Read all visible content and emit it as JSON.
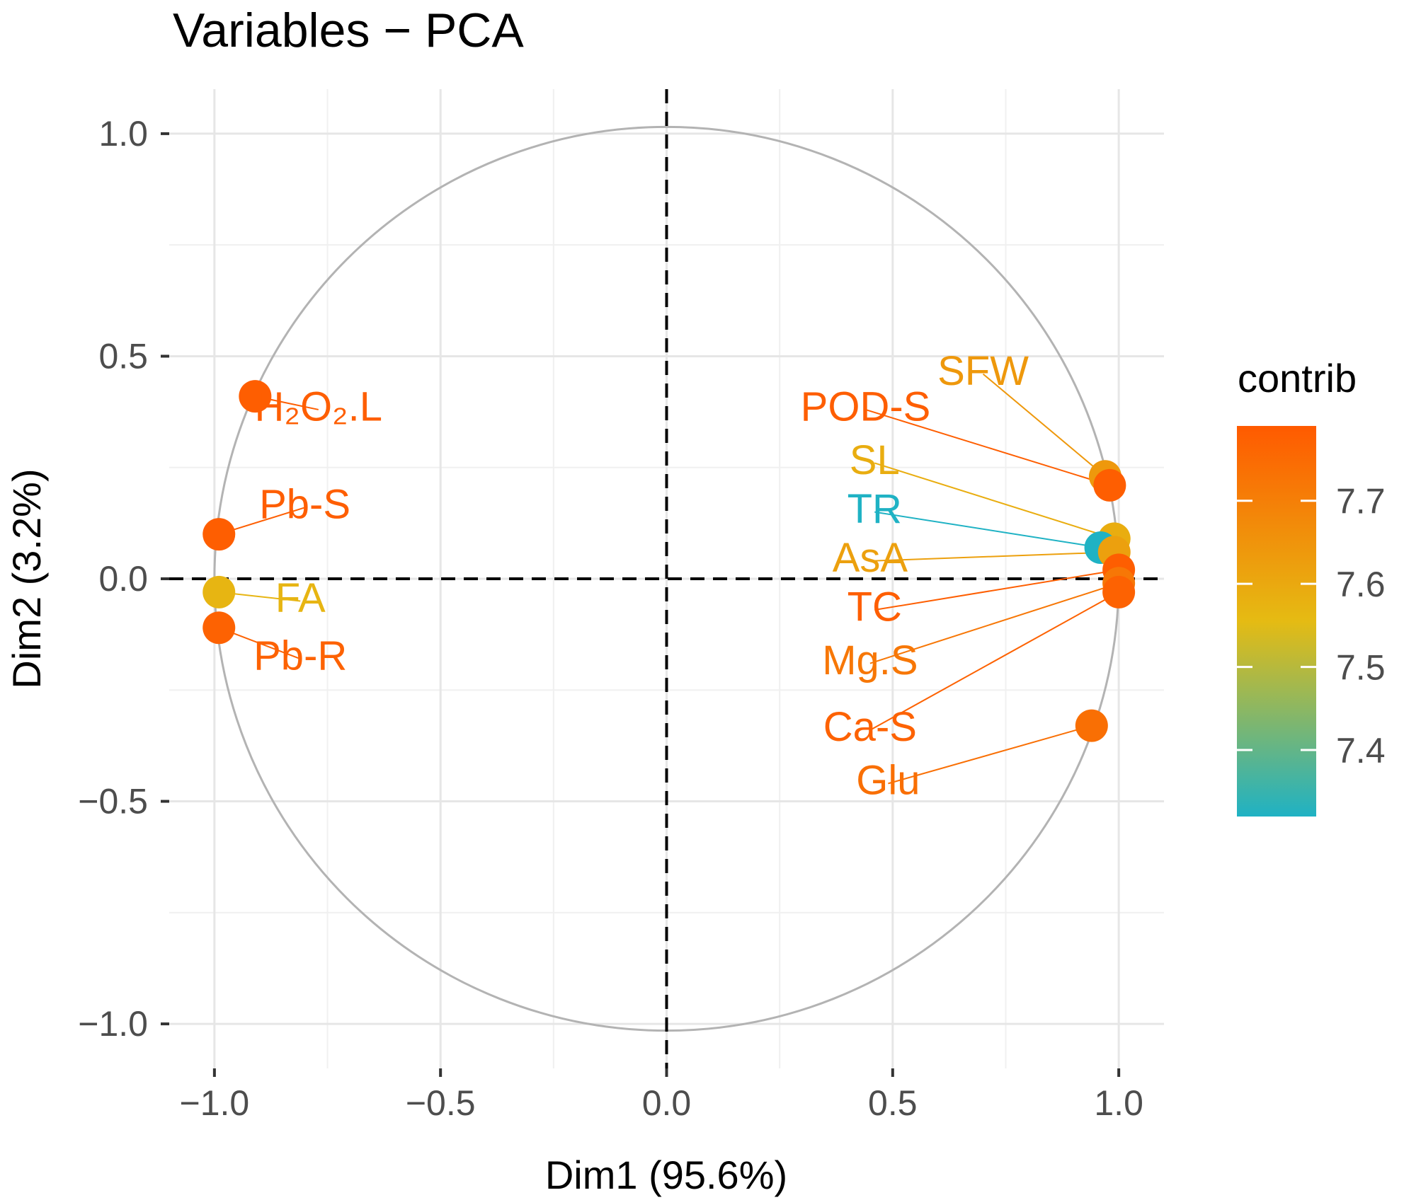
{
  "chart_data": {
    "type": "scatter",
    "title": "Variables − PCA",
    "xlabel": "Dim1 (95.6%)",
    "ylabel": "Dim2 (3.2%)",
    "xlim": [
      -1.1,
      1.1
    ],
    "ylim": [
      -1.1,
      1.1
    ],
    "x_ticks": [
      -1.0,
      -0.5,
      0.0,
      0.5,
      1.0
    ],
    "y_ticks": [
      -1.0,
      -0.5,
      0.0,
      0.5,
      1.0
    ],
    "x_tick_labels": [
      "−1.0",
      "−0.5",
      "0.0",
      "0.5",
      "1.0"
    ],
    "y_tick_labels": [
      "−1.0",
      "−0.5",
      "0.0",
      "0.5",
      "1.0"
    ],
    "grid": true,
    "unit_circle": true,
    "legend": {
      "title": "contrib",
      "position": "right",
      "min": 7.32,
      "max": 7.79,
      "ticks": [
        7.4,
        7.5,
        7.6,
        7.7
      ],
      "tick_labels": [
        "7.4",
        "7.5",
        "7.6",
        "7.7"
      ],
      "colors": [
        "#1fb2c4",
        "#e5bb13",
        "#ff5a00"
      ]
    },
    "points": [
      {
        "name": "H₂O₂.L",
        "x": -0.91,
        "y": 0.41,
        "contrib": 7.78,
        "label_x": -0.77,
        "label_y": 0.38
      },
      {
        "name": "Pb-S",
        "x": -0.99,
        "y": 0.1,
        "contrib": 7.78,
        "label_x": -0.8,
        "label_y": 0.16
      },
      {
        "name": "FA",
        "x": -0.99,
        "y": -0.03,
        "contrib": 7.57,
        "label_x": -0.81,
        "label_y": -0.05
      },
      {
        "name": "Pb-R",
        "x": -0.99,
        "y": -0.11,
        "contrib": 7.77,
        "label_x": -0.81,
        "label_y": -0.18
      },
      {
        "name": "SFW",
        "x": 0.97,
        "y": 0.23,
        "contrib": 7.64,
        "label_x": 0.7,
        "label_y": 0.46
      },
      {
        "name": "POD-S",
        "x": 0.98,
        "y": 0.21,
        "contrib": 7.78,
        "label_x": 0.44,
        "label_y": 0.38
      },
      {
        "name": "SL",
        "x": 0.99,
        "y": 0.09,
        "contrib": 7.59,
        "label_x": 0.46,
        "label_y": 0.26
      },
      {
        "name": "TR",
        "x": 0.96,
        "y": 0.07,
        "contrib": 7.32,
        "label_x": 0.46,
        "label_y": 0.15
      },
      {
        "name": "AsA",
        "x": 0.99,
        "y": 0.06,
        "contrib": 7.62,
        "label_x": 0.45,
        "label_y": 0.04
      },
      {
        "name": "TC",
        "x": 1.0,
        "y": 0.02,
        "contrib": 7.78,
        "label_x": 0.46,
        "label_y": -0.07
      },
      {
        "name": "Mg.S",
        "x": 1.0,
        "y": -0.01,
        "contrib": 7.72,
        "label_x": 0.45,
        "label_y": -0.19
      },
      {
        "name": "Ca-S",
        "x": 1.0,
        "y": -0.03,
        "contrib": 7.77,
        "label_x": 0.45,
        "label_y": -0.34
      },
      {
        "name": "Glu",
        "x": 0.94,
        "y": -0.33,
        "contrib": 7.74,
        "label_x": 0.49,
        "label_y": -0.46
      }
    ]
  }
}
